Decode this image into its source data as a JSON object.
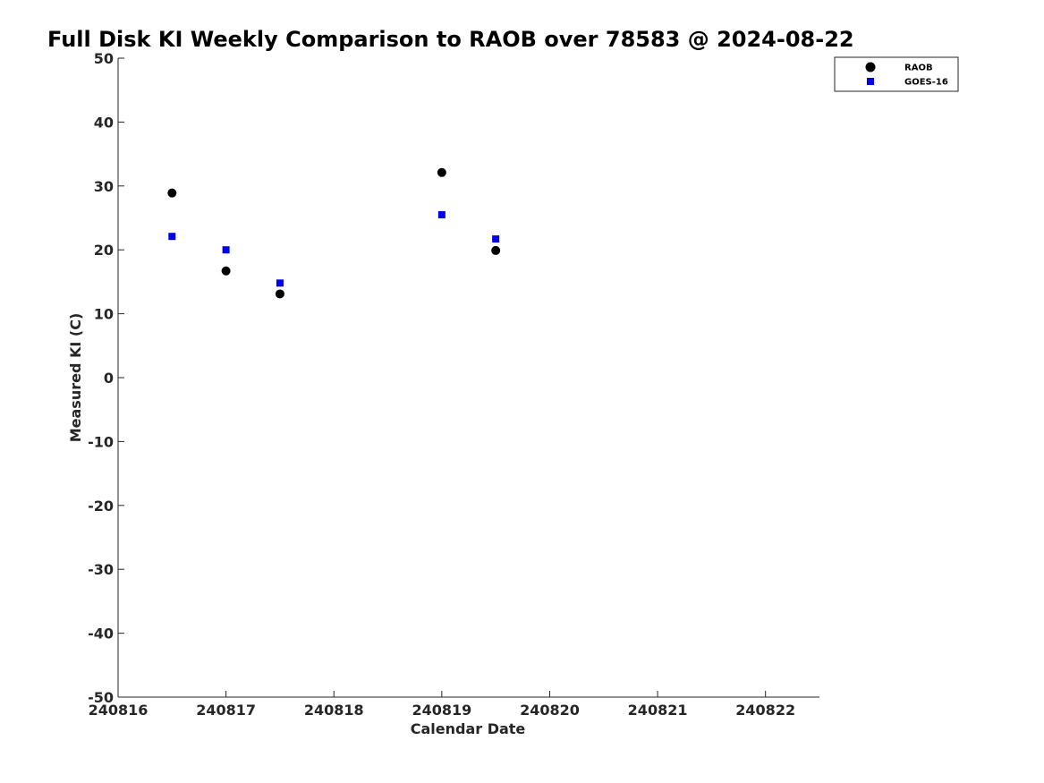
{
  "chart_data": {
    "type": "scatter",
    "title": "Full Disk KI Weekly Comparison to RAOB over 78583 @ 2024-08-22",
    "xlabel": "Calendar Date",
    "ylabel": "Measured KI (C)",
    "xlim": [
      240816,
      240822.5
    ],
    "ylim": [
      -50,
      50
    ],
    "xticks": [
      240816,
      240817,
      240818,
      240819,
      240820,
      240821,
      240822
    ],
    "yticks": [
      -50,
      -40,
      -30,
      -20,
      -10,
      0,
      10,
      20,
      30,
      40,
      50
    ],
    "xtick_labels": [
      "240816",
      "240817",
      "240818",
      "240819",
      "240820",
      "240821",
      "240822"
    ],
    "ytick_labels": [
      "-50",
      "-40",
      "-30",
      "-20",
      "-10",
      "0",
      "10",
      "20",
      "30",
      "40",
      "50"
    ],
    "grid": false,
    "legend_position": "top-right",
    "series": [
      {
        "name": "RAOB",
        "marker": "circle",
        "color": "#000000",
        "x": [
          240816.5,
          240817.0,
          240817.5,
          240819.0,
          240819.5
        ],
        "y": [
          28.9,
          16.7,
          13.1,
          32.1,
          19.9
        ]
      },
      {
        "name": "GOES-16",
        "marker": "square",
        "color": "#0000ee",
        "x": [
          240816.5,
          240817.0,
          240817.5,
          240819.0,
          240819.5
        ],
        "y": [
          22.1,
          20.0,
          14.8,
          25.5,
          21.7
        ]
      }
    ]
  }
}
